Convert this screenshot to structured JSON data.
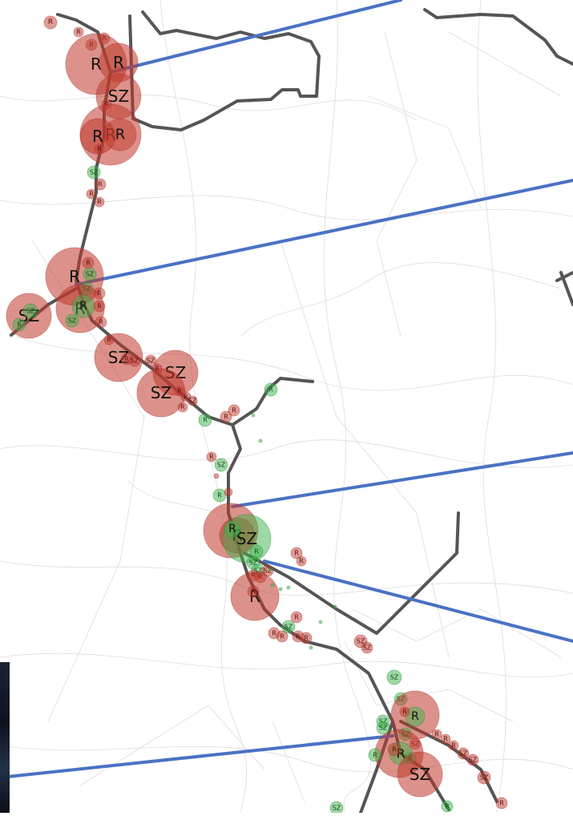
{
  "map": {
    "legend_codes": {
      "R": "R",
      "SZ": "SZ"
    },
    "colors": {
      "red": "#c0392b",
      "green": "#3cb44b",
      "route": "#555555",
      "pointer": "#4a72c4",
      "streets": "#d9d9d9",
      "background": "#ffffff"
    },
    "visible_labels": [
      "R",
      "SZ"
    ]
  }
}
